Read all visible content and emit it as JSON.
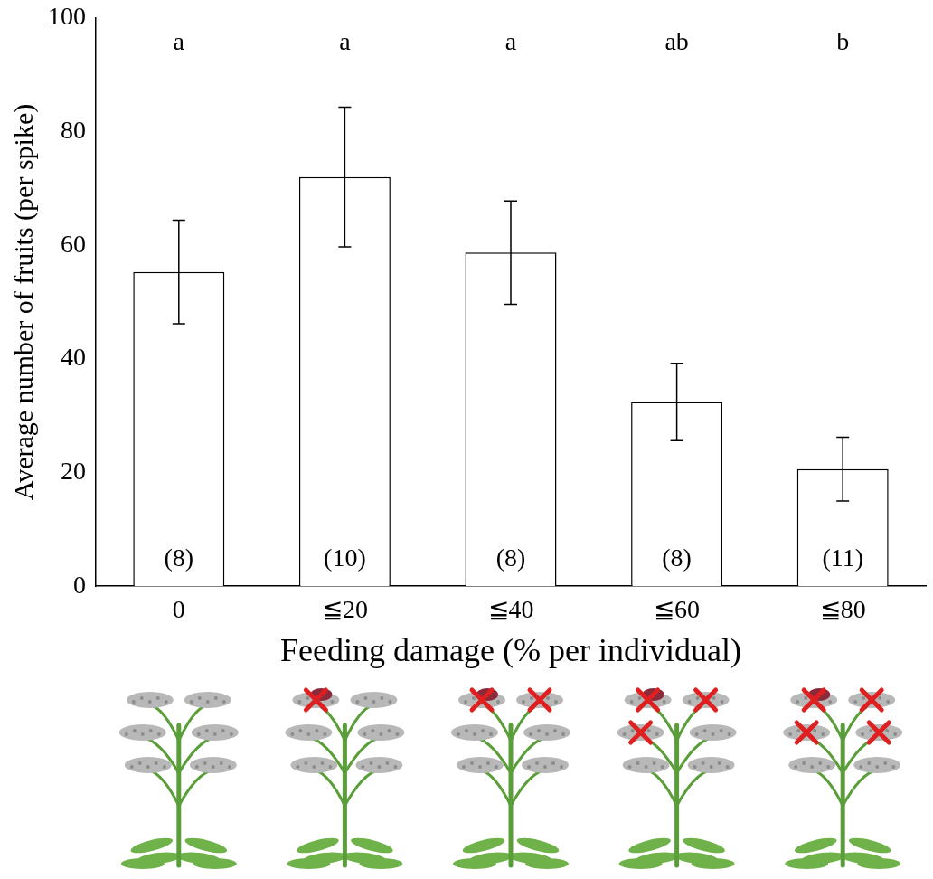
{
  "chart_data": {
    "type": "bar",
    "x_label": "Feeding damage (% per individual)",
    "y_label": "Average number of fruits (per spike)",
    "categories": [
      "0",
      "≦20",
      "≦40",
      "≦60",
      "≦80"
    ],
    "values": [
      55.3,
      72.0,
      58.7,
      32.4,
      20.6
    ],
    "errors": [
      9.1,
      12.3,
      9.1,
      6.8,
      5.6
    ],
    "significance_letters": [
      "a",
      "a",
      "a",
      "ab",
      "b"
    ],
    "sample_sizes": [
      "(8)",
      "(10)",
      "(8)",
      "(8)",
      "(11)"
    ],
    "color": "#ffffff",
    "ylim": [
      0,
      100
    ],
    "yticks": [
      0,
      20,
      40,
      60,
      80,
      100
    ],
    "grid": false
  }
}
